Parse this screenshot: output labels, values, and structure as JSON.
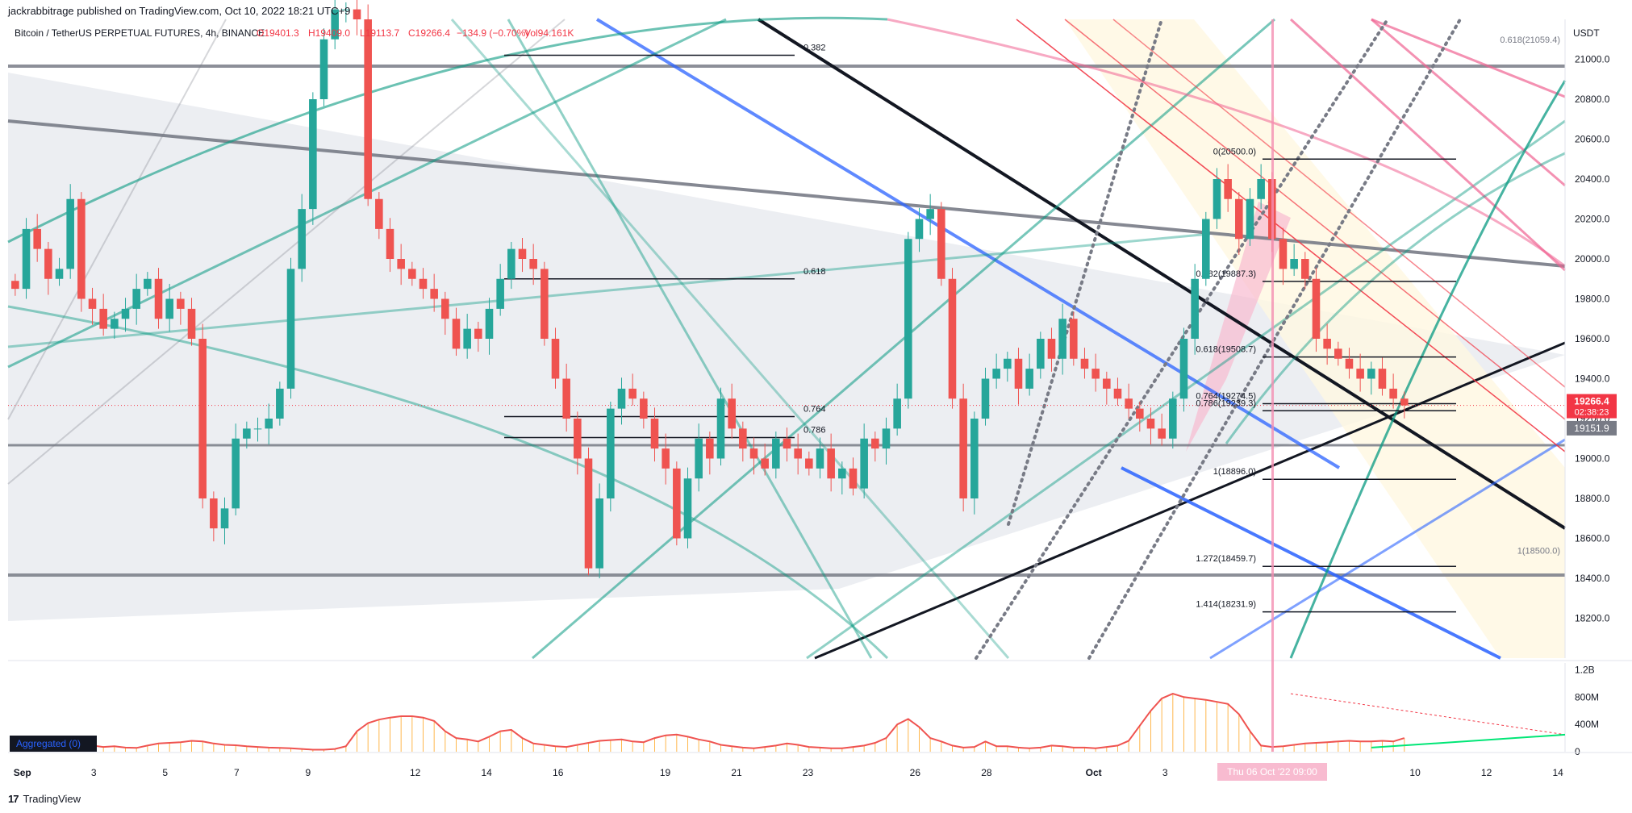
{
  "publish_line": "jackrabbitrage published on TradingView.com, Oct 10, 2022 18:21 UTC+9",
  "legend": {
    "symbol": "Bitcoin / TetherUS PERPETUAL FUTURES, 4h, BINANCE",
    "open": "O19401.3",
    "high": "H19409.0",
    "low": "L19113.7",
    "close": "C19266.4",
    "change": "−134.9 (−0.70%)",
    "vol": "Vol94.161K"
  },
  "footer_brand": "TradingView",
  "colors": {
    "up": "#26a69a",
    "down": "#ef5350",
    "price_tag": "#f23645",
    "grey_tag": "#787b86",
    "black_line": "#131722",
    "blue_line": "#2962ff",
    "teal_line": "#089981",
    "pink_line": "#f06292",
    "red_line": "#f23645",
    "grey_line": "#787b86"
  },
  "chart_data": {
    "type": "candlestick",
    "currency": "USDT",
    "y_range": [
      18000,
      21200
    ],
    "y_ticks": [
      "21000.0",
      "20800.0",
      "20600.0",
      "20400.0",
      "20200.0",
      "20000.0",
      "19800.0",
      "19600.0",
      "19400.0",
      "19200.0",
      "19000.0",
      "18800.0",
      "18600.0",
      "18400.0",
      "18200.0"
    ],
    "x_ticks": [
      "Sep",
      "3",
      "5",
      "7",
      "9",
      "12",
      "14",
      "16",
      "19",
      "21",
      "23",
      "26",
      "28",
      "Oct",
      "3",
      "5",
      "7",
      "10",
      "12",
      "14"
    ],
    "x_tick_days": [
      1,
      3,
      5,
      7,
      9,
      12,
      14,
      16,
      19,
      21,
      23,
      26,
      28,
      31,
      33,
      35,
      37,
      40,
      42,
      44
    ],
    "x_range": [
      0.6,
      44.2
    ],
    "last_price": "19266.4",
    "countdown": "02:38:23",
    "grey_level": "19151.9",
    "crosshair_label": "Thu 06 Oct '22 09:00",
    "crosshair_day": 36.0,
    "price_close_series": [
      19850,
      20150,
      20050,
      19900,
      19950,
      20300,
      19800,
      19750,
      19650,
      19700,
      19750,
      19850,
      19900,
      19700,
      19800,
      19750,
      19600,
      18800,
      18650,
      18750,
      19100,
      19150,
      19150,
      19200,
      19350,
      19950,
      20250,
      20800,
      21100,
      21250,
      21250,
      21200,
      20300,
      20150,
      20000,
      19950,
      19900,
      19850,
      19800,
      19700,
      19550,
      19650,
      19600,
      19750,
      19900,
      20050,
      20000,
      19950,
      19600,
      19400,
      19200,
      19000,
      18450,
      18800,
      19250,
      19350,
      19300,
      19200,
      19050,
      18950,
      18600,
      18900,
      19100,
      19000,
      19300,
      19150,
      19050,
      19000,
      18950,
      19100,
      19050,
      19000,
      18950,
      19050,
      18900,
      18950,
      18850,
      19100,
      19050,
      19150,
      19300,
      20100,
      20200,
      20250,
      19900,
      19300,
      18800,
      19200,
      19400,
      19450,
      19500,
      19350,
      19450,
      19600,
      19500,
      19700,
      19500,
      19450,
      19400,
      19350,
      19300,
      19250,
      19200,
      19150,
      19100,
      19300,
      19600,
      19900,
      20200,
      20400,
      20300,
      20100,
      20300,
      20400,
      20100,
      19950,
      20000,
      19900,
      19600,
      19550,
      19500,
      19450,
      19400,
      19450,
      19350,
      19300,
      19266
    ],
    "fib_levels_right": [
      {
        "label": "0(20500.0)",
        "value": 20500.0
      },
      {
        "label": "0.382(19887.3)",
        "value": 19887.3
      },
      {
        "label": "0.618(19508.7)",
        "value": 19508.7
      },
      {
        "label": "0.764(19274.5)",
        "value": 19274.5
      },
      {
        "label": "0.786(19239.3)",
        "value": 19239.3
      },
      {
        "label": "1(18896.0)",
        "value": 18896.0
      },
      {
        "label": "1.272(18459.7)",
        "value": 18459.7
      },
      {
        "label": "1.414(18231.9)",
        "value": 18231.9
      }
    ],
    "fib_levels_left": [
      {
        "label": "0.382",
        "value": 21020
      },
      {
        "label": "0.618",
        "value": 19900
      },
      {
        "label": "0.764",
        "value": 19210
      },
      {
        "label": "0.786",
        "value": 19105
      }
    ],
    "fib_far_right": [
      {
        "label": "0.618(21059.4)",
        "value": 21059.4
      },
      {
        "label": "1(18500.0)",
        "value": 18500.0
      }
    ],
    "volume": {
      "y_ticks": [
        "1.2B",
        "800M",
        "400M",
        "0"
      ],
      "y_tick_values": [
        1200,
        800,
        400,
        0
      ],
      "y_max": 1300,
      "label": "Aggregated (0)",
      "series": [
        60,
        80,
        90,
        100,
        110,
        150,
        130,
        90,
        70,
        80,
        60,
        55,
        90,
        120,
        130,
        140,
        160,
        150,
        120,
        100,
        95,
        80,
        70,
        60,
        55,
        50,
        40,
        30,
        30,
        40,
        80,
        300,
        420,
        470,
        500,
        520,
        520,
        500,
        450,
        300,
        200,
        180,
        150,
        220,
        300,
        320,
        200,
        120,
        100,
        80,
        70,
        100,
        130,
        160,
        170,
        180,
        150,
        140,
        200,
        240,
        250,
        220,
        180,
        150,
        100,
        80,
        60,
        50,
        70,
        90,
        120,
        100,
        70,
        60,
        50,
        50,
        70,
        90,
        130,
        200,
        400,
        480,
        360,
        200,
        150,
        90,
        60,
        70,
        150,
        80,
        80,
        60,
        50,
        60,
        90,
        80,
        60,
        60,
        50,
        70,
        90,
        160,
        380,
        600,
        780,
        850,
        800,
        780,
        760,
        730,
        700,
        550,
        300,
        90,
        70,
        80,
        100,
        120,
        130,
        140,
        150,
        160,
        150,
        150,
        160,
        150,
        200
      ]
    }
  }
}
